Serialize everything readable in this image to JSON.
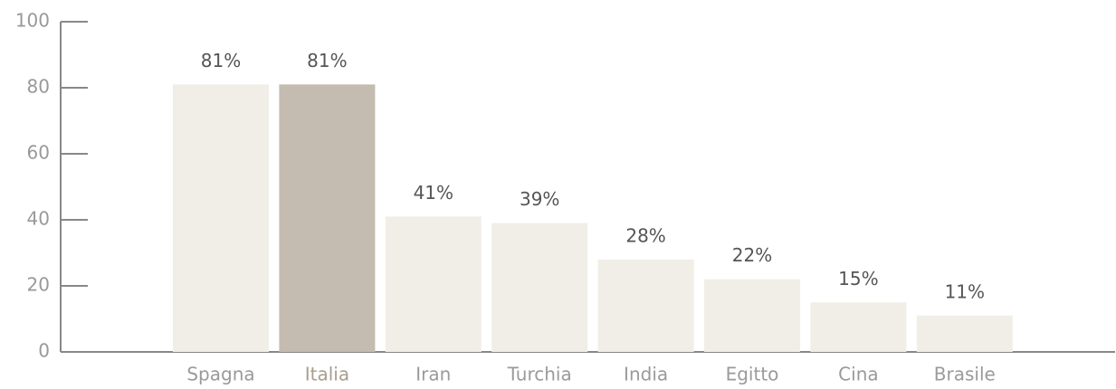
{
  "chart_data": {
    "type": "bar",
    "categories": [
      "Spagna",
      "Italia",
      "Iran",
      "Turchia",
      "India",
      "Egitto",
      "Cina",
      "Brasile"
    ],
    "values": [
      81,
      81,
      41,
      39,
      28,
      22,
      15,
      11
    ],
    "value_labels": [
      "81%",
      "81%",
      "41%",
      "39%",
      "28%",
      "22%",
      "15%",
      "11%"
    ],
    "colors": [
      "#f1eee7",
      "#c4bcb0",
      "#f1eee7",
      "#f1eee7",
      "#f1eee7",
      "#f1eee7",
      "#f1eee7",
      "#f1eee7"
    ],
    "label_colors": [
      "#9a9a9a",
      "#a89e8f",
      "#9a9a9a",
      "#9a9a9a",
      "#9a9a9a",
      "#9a9a9a",
      "#9a9a9a",
      "#9a9a9a"
    ],
    "ylim": [
      0,
      100
    ],
    "yticks": [
      0,
      20,
      40,
      60,
      80,
      100
    ]
  }
}
